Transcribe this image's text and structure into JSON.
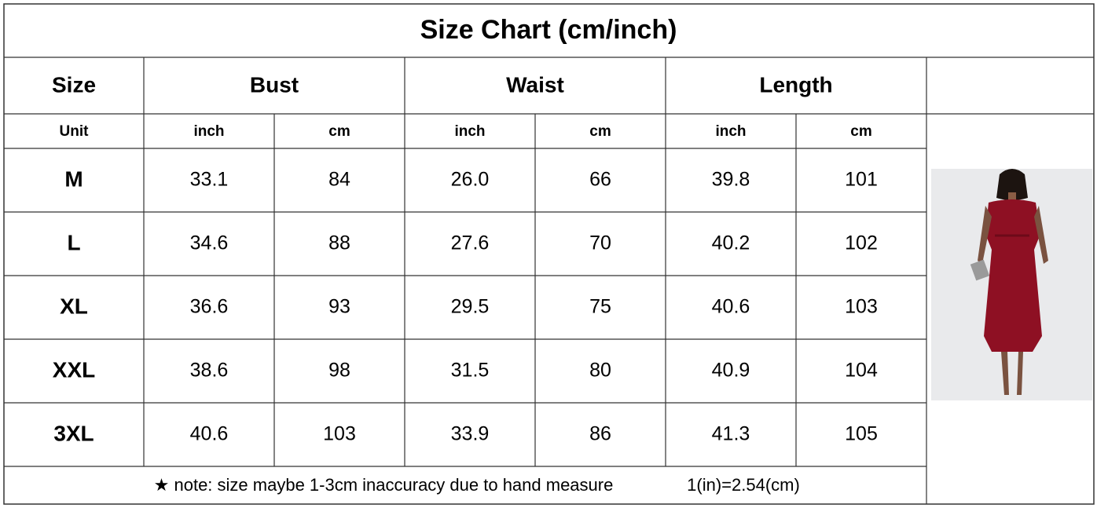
{
  "title": "Size Chart (cm/inch)",
  "header": [
    "Size",
    "Bust",
    "Waist",
    "Length"
  ],
  "units": [
    "Unit",
    "inch",
    "cm",
    "inch",
    "cm",
    "inch",
    "cm"
  ],
  "rows": [
    [
      "M",
      "33.1",
      "84",
      "26.0",
      "66",
      "39.8",
      "101"
    ],
    [
      "L",
      "34.6",
      "88",
      "27.6",
      "70",
      "40.2",
      "102"
    ],
    [
      "XL",
      "36.6",
      "93",
      "29.5",
      "75",
      "40.6",
      "103"
    ],
    [
      "XXL",
      "38.6",
      "98",
      "31.5",
      "80",
      "40.9",
      "104"
    ],
    [
      "3XL",
      "40.6",
      "103",
      "33.9",
      "86",
      "41.3",
      "105"
    ]
  ],
  "note": "★ note: size maybe 1-3cm inaccuracy due to hand measure",
  "conversion": "1(in)=2.54(cm)"
}
